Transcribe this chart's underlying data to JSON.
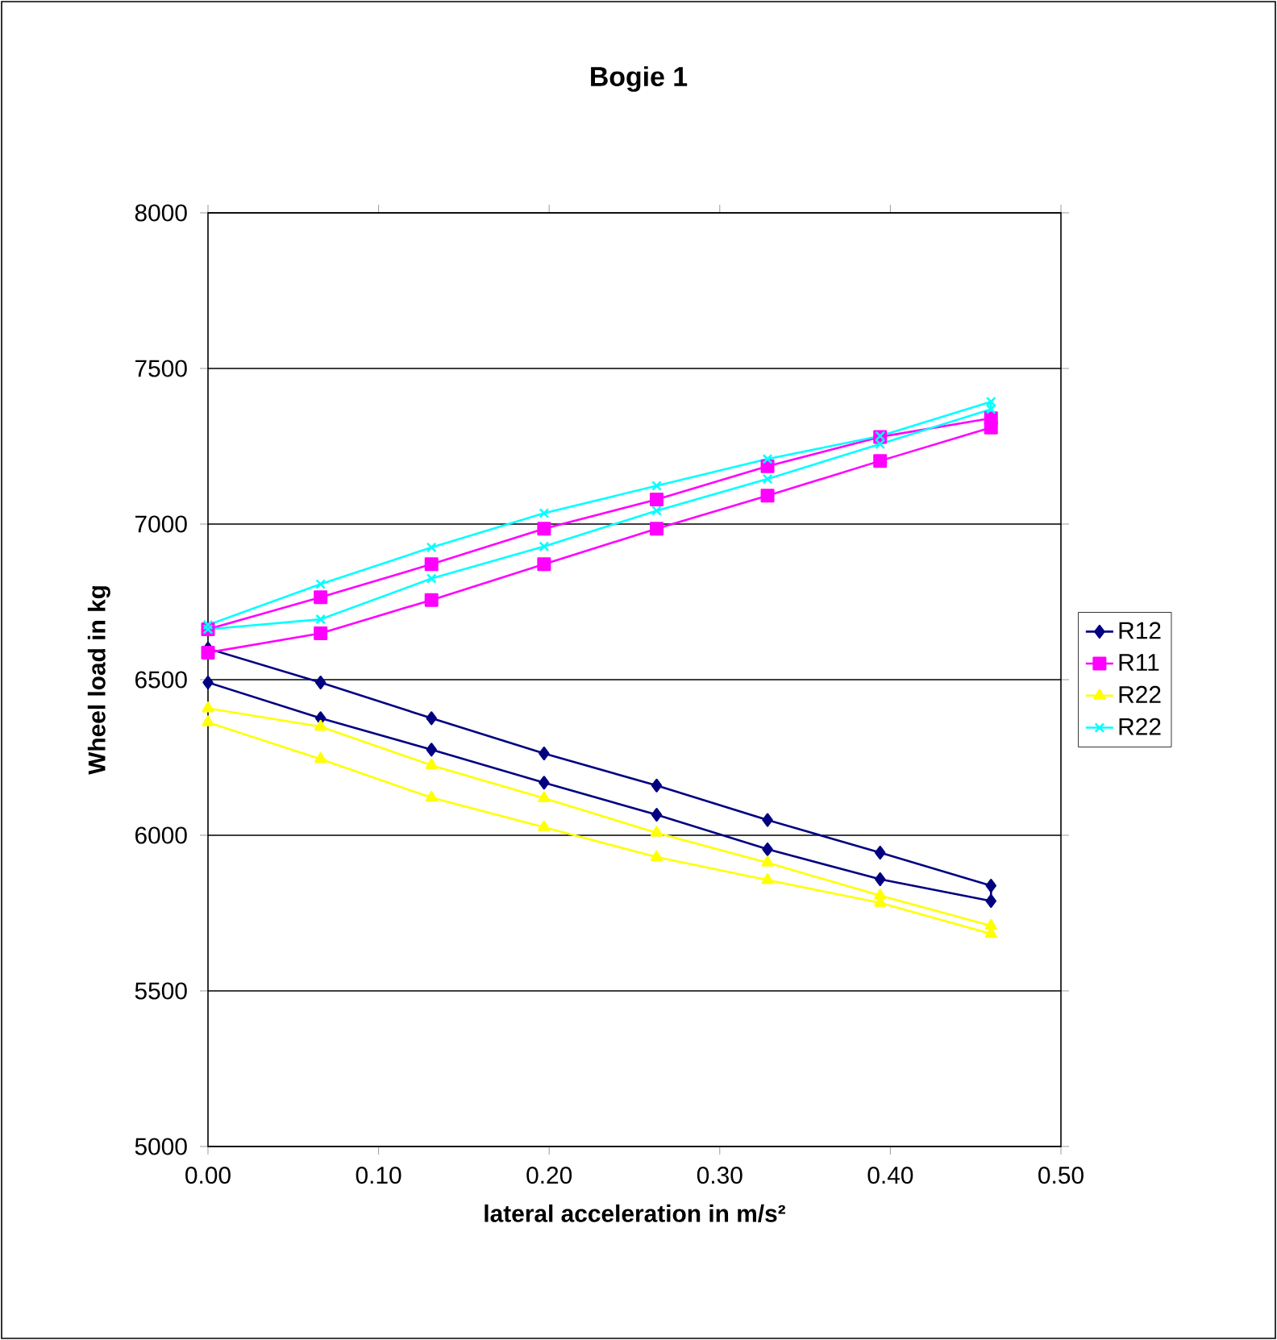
{
  "chart_data": {
    "type": "line",
    "title": "Bogie 1",
    "xlabel": "lateral acceleration in m/s²",
    "ylabel": "Wheel load in kg",
    "xlim": [
      0,
      0.5
    ],
    "ylim": [
      5000,
      8000
    ],
    "xticks": [
      {
        "value": 0,
        "label": "0.00"
      },
      {
        "value": 0.1,
        "label": "0.10"
      },
      {
        "value": 0.2,
        "label": "0.20"
      },
      {
        "value": 0.3,
        "label": "0.30"
      },
      {
        "value": 0.4,
        "label": "0.40"
      },
      {
        "value": 0.5,
        "label": "0.50"
      }
    ],
    "yticks": [
      5000,
      5500,
      6000,
      6500,
      7000,
      7500,
      8000
    ],
    "grid": "y",
    "legend": "right",
    "line_style": "solid",
    "x": [
      0,
      0.066,
      0.131,
      0.197,
      0.263,
      0.328,
      0.394,
      0.459,
      0.459,
      0.394,
      0.328,
      0.263,
      0.197,
      0.131,
      0.066,
      0
    ],
    "series": [
      {
        "name": "R12",
        "color": "#000080",
        "marker": "diamond",
        "values": [
          6600,
          6491,
          6376,
          6263,
          6160,
          6049,
          5944,
          5838,
          5789,
          5859,
          5955,
          6066,
          6169,
          6275,
          6376,
          6491
        ]
      },
      {
        "name": "R11",
        "color": "#ff00ff",
        "marker": "square",
        "values": [
          6662,
          6765,
          6871,
          6985,
          7079,
          7186,
          7280,
          7340,
          7310,
          7203,
          7091,
          6985,
          6871,
          6756,
          6649,
          6587
        ]
      },
      {
        "name": "R22",
        "color": "#ffff00",
        "marker": "triangle",
        "values": [
          6408,
          6349,
          6225,
          6119,
          6008,
          5912,
          5806,
          5709,
          5683,
          5783,
          5856,
          5930,
          6026,
          6121,
          6245,
          6363
        ]
      },
      {
        "name": "R22",
        "color": "#00ffff",
        "marker": "cross",
        "values": [
          6676,
          6807,
          6925,
          7035,
          7123,
          7209,
          7283,
          7393,
          7369,
          7257,
          7145,
          7043,
          6928,
          6825,
          6694,
          6662
        ]
      }
    ]
  }
}
